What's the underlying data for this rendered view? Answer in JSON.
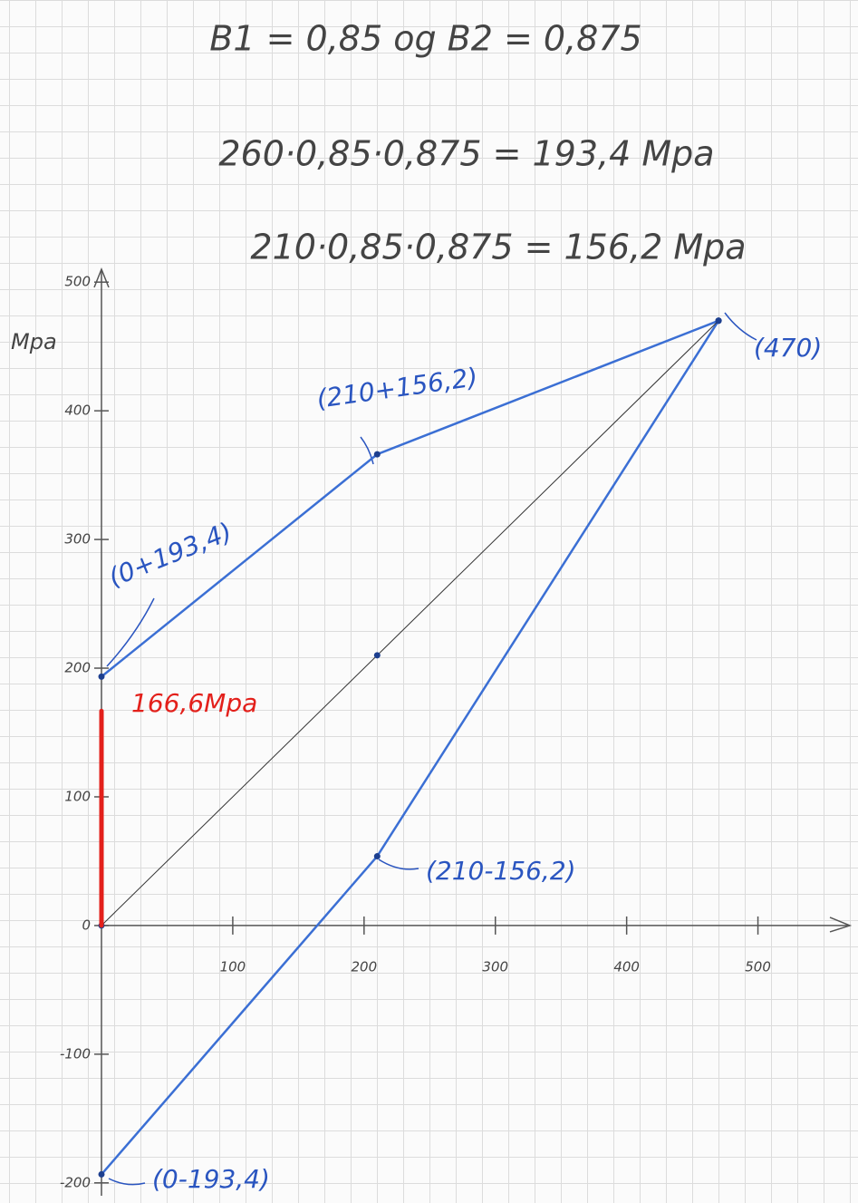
{
  "chart_data": {
    "type": "line",
    "equations": [
      "B1 = 0,85  og  B2 = 0,875",
      "260·0,85·0,875 = 193,4 Mpa",
      "210·0,85·0,875 = 156,2 Mpa"
    ],
    "ylabel": "Mpa",
    "xlim": [
      0,
      570
    ],
    "ylim": [
      -210,
      510
    ],
    "xticks": [
      100,
      200,
      300,
      400,
      500
    ],
    "yticks": [
      -200,
      -100,
      0,
      100,
      200,
      300,
      400,
      500
    ],
    "grid": false,
    "series": [
      {
        "color": "#3b6fd4",
        "x": [
          0,
          210,
          470
        ],
        "values": [
          193.4,
          366.2,
          470
        ]
      },
      {
        "color": "#3b6fd4",
        "x": [
          0,
          210,
          470
        ],
        "values": [
          -193.4,
          53.8,
          470
        ]
      },
      {
        "color": "#333333",
        "x": [
          0,
          210,
          470
        ],
        "values": [
          0,
          210,
          470
        ]
      },
      {
        "color": "#e3201b",
        "x": [
          0,
          0
        ],
        "values": [
          0,
          166.6
        ]
      }
    ],
    "annotations": [
      {
        "text": "(0+193,4)",
        "color": "#2a55c0"
      },
      {
        "text": "(210+156,2)",
        "color": "#2a55c0"
      },
      {
        "text": "(470)",
        "color": "#2a55c0"
      },
      {
        "text": "(210-156,2)",
        "color": "#2a55c0"
      },
      {
        "text": "(0-193,4)",
        "color": "#2a55c0"
      },
      {
        "text": "166,6Mpa",
        "color": "#e3201b"
      }
    ]
  }
}
